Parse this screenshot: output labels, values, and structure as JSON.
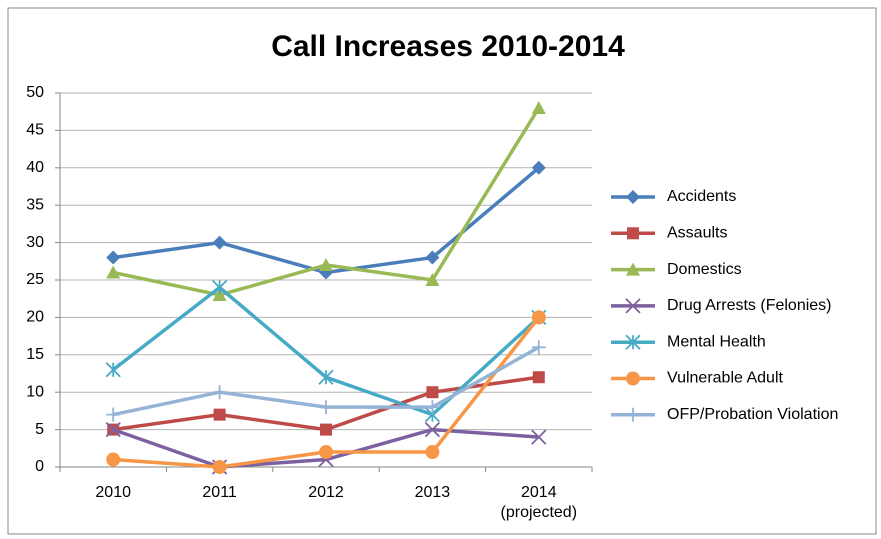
{
  "chart_data": {
    "type": "line",
    "title": "Call Increases 2010-2014",
    "categories": [
      "2010",
      "2011",
      "2012",
      "2013",
      "2014 (projected)"
    ],
    "series": [
      {
        "name": "Accidents",
        "color": "#4a7ebb",
        "marker": "diamond",
        "values": [
          28,
          30,
          26,
          28,
          40
        ]
      },
      {
        "name": "Assaults",
        "color": "#be4b48",
        "marker": "square",
        "values": [
          5,
          7,
          5,
          10,
          12
        ]
      },
      {
        "name": "Domestics",
        "color": "#98b954",
        "marker": "triangle",
        "values": [
          26,
          23,
          27,
          25,
          48
        ]
      },
      {
        "name": "Drug Arrests (Felonies)",
        "color": "#7d60a0",
        "marker": "x",
        "values": [
          5,
          0,
          1,
          5,
          4
        ]
      },
      {
        "name": "Mental Health",
        "color": "#46aac5",
        "marker": "star",
        "values": [
          13,
          24,
          12,
          7,
          20
        ]
      },
      {
        "name": "Vulnerable Adult",
        "color": "#f79646",
        "marker": "circle",
        "values": [
          1,
          0,
          2,
          2,
          20
        ]
      },
      {
        "name": "OFP/Probation Violation",
        "color": "#95b3d7",
        "marker": "plus",
        "values": [
          7,
          10,
          8,
          8,
          16
        ]
      }
    ],
    "ylim": [
      0,
      50
    ],
    "yticks": [
      0,
      5,
      10,
      15,
      20,
      25,
      30,
      35,
      40,
      45,
      50
    ],
    "grid": true,
    "legend": "right"
  }
}
